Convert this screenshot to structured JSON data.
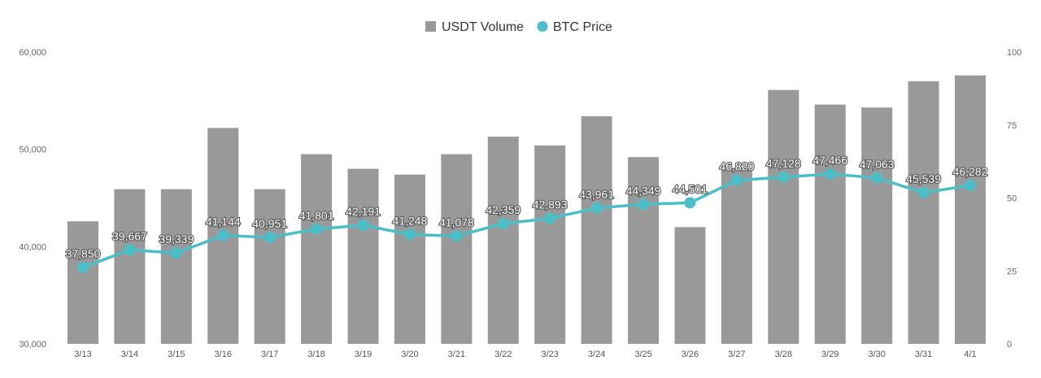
{
  "chart_data": {
    "type": "bar",
    "categories": [
      "3/13",
      "3/14",
      "3/15",
      "3/16",
      "3/17",
      "3/18",
      "3/19",
      "3/20",
      "3/21",
      "3/22",
      "3/23",
      "3/24",
      "3/25",
      "3/26",
      "3/27",
      "3/28",
      "3/29",
      "3/30",
      "3/31",
      "4/1"
    ],
    "series": [
      {
        "name": "USDT Volume",
        "type": "bar",
        "axis": "right",
        "color": "#999999",
        "values": [
          42,
          53,
          53,
          74,
          53,
          65,
          60,
          58,
          65,
          71,
          68,
          78,
          64,
          40,
          60,
          87,
          82,
          81,
          90,
          92
        ]
      },
      {
        "name": "BTC Price",
        "type": "line",
        "axis": "left",
        "color": "#4bbfc7",
        "values": [
          37850,
          39667,
          39339,
          41144,
          40951,
          41801,
          42191,
          41248,
          41078,
          42359,
          42893,
          43961,
          44349,
          44501,
          46820,
          47128,
          47466,
          47063,
          45539,
          46282
        ],
        "labels": [
          "37,850",
          "39,667",
          "39,339",
          "41,144",
          "40,951",
          "41,801",
          "42,191",
          "41,248",
          "41,078",
          "42,359",
          "42,893",
          "43,961",
          "44,349",
          "44,501",
          "46,820",
          "47,128",
          "47,466",
          "47,063",
          "45,539",
          "46,282"
        ]
      }
    ],
    "y_left": {
      "range": [
        30000,
        60000
      ],
      "ticks": [
        "30,000",
        "40,000",
        "50,000",
        "60,000"
      ]
    },
    "y_right": {
      "range": [
        0,
        100
      ],
      "ticks": [
        "0",
        "25",
        "50",
        "75",
        "100"
      ]
    },
    "legend": "top-center",
    "grid": false
  }
}
